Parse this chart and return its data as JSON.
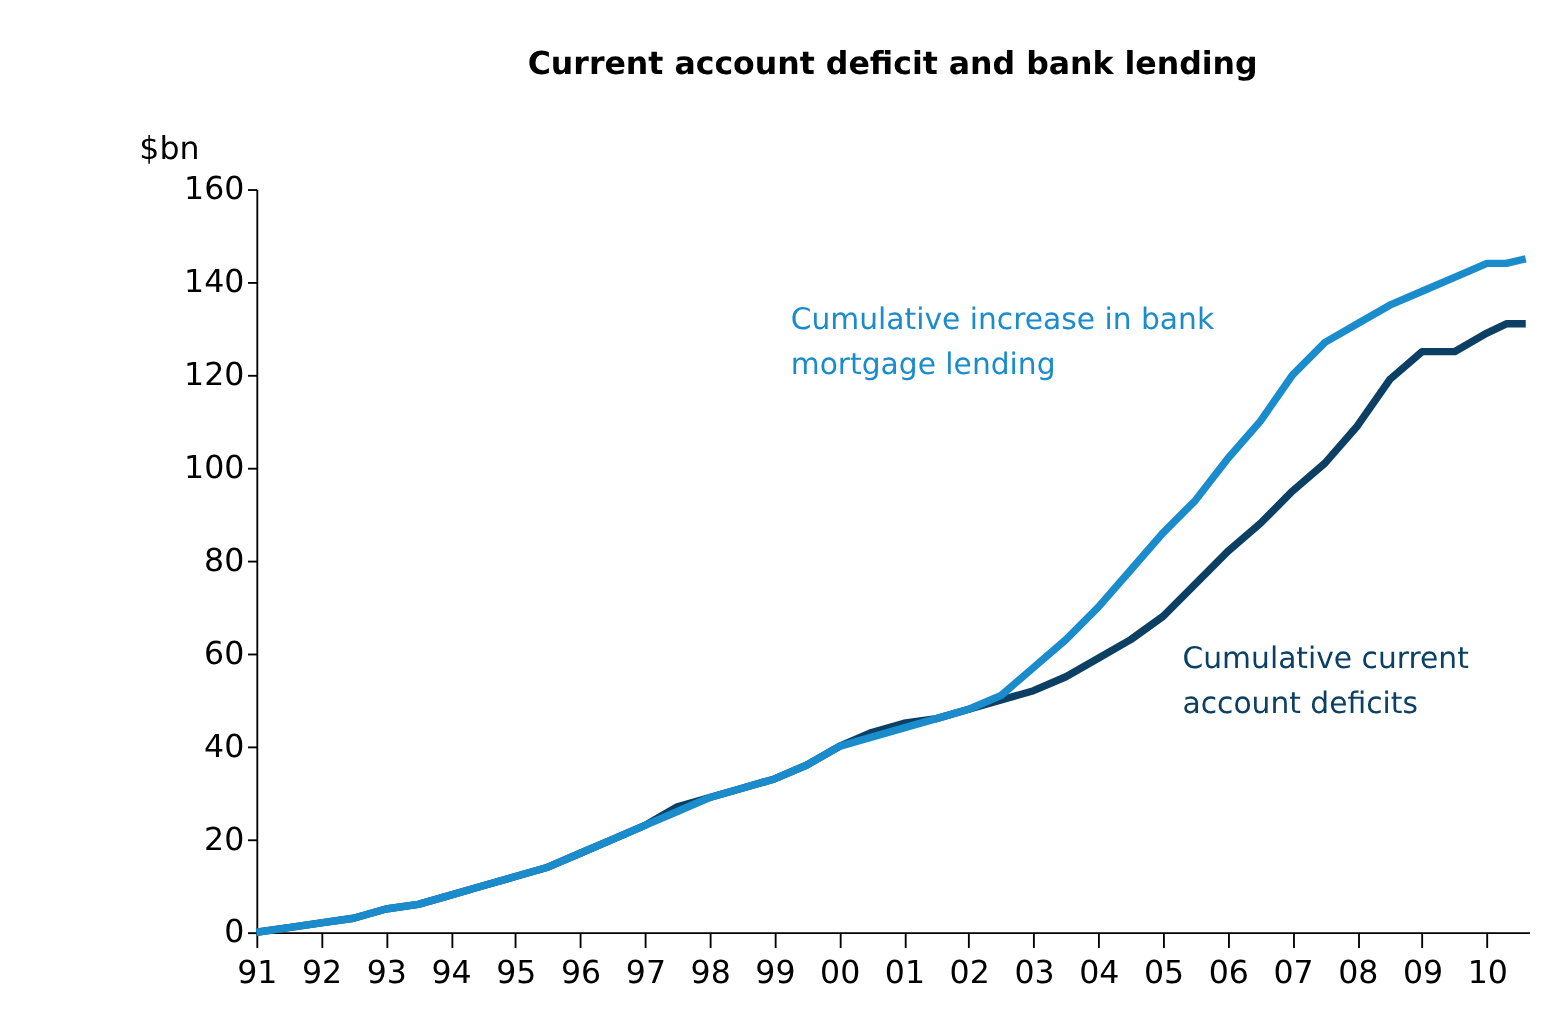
{
  "chart_data": {
    "type": "line",
    "title": "Current account deficit and bank lending",
    "ylabel": "$bn",
    "x": [
      1991,
      1991.5,
      1992,
      1992.5,
      1993,
      1993.5,
      1994,
      1994.5,
      1995,
      1995.5,
      1996,
      1996.5,
      1997,
      1997.5,
      1998,
      1998.5,
      1999,
      1999.5,
      2000,
      2000.5,
      2001,
      2001.5,
      2002,
      2002.5,
      2003,
      2003.5,
      2004,
      2004.5,
      2005,
      2005.5,
      2006,
      2006.5,
      2007,
      2007.5,
      2008,
      2008.5,
      2009,
      2009.5,
      2010,
      2010.3,
      2010.6
    ],
    "series": [
      {
        "name": "Cumulative current account deficits",
        "color": "#0b3f63",
        "values": [
          0,
          1,
          2,
          3,
          5,
          6,
          8,
          10,
          12,
          14,
          17,
          20,
          23,
          27,
          29,
          31,
          33,
          36,
          40,
          43,
          45,
          46,
          48,
          50,
          52,
          55,
          59,
          63,
          68,
          75,
          82,
          88,
          95,
          101,
          109,
          119,
          125,
          125,
          129,
          131,
          131
        ]
      },
      {
        "name": "Cumulative increase in bank mortgage lending",
        "color": "#1a8ccb",
        "values": [
          0,
          1,
          2,
          3,
          5,
          6,
          8,
          10,
          12,
          14,
          17,
          20,
          23,
          26,
          29,
          31,
          33,
          36,
          40,
          42,
          44,
          46,
          48,
          51,
          57,
          63,
          70,
          78,
          86,
          93,
          102,
          110,
          120,
          127,
          131,
          135,
          138,
          141,
          144,
          144,
          145
        ]
      }
    ],
    "xlim": [
      1991,
      2010.65
    ],
    "xticks": [
      {
        "value": 1991,
        "label": "91"
      },
      {
        "value": 1992,
        "label": "92"
      },
      {
        "value": 1993,
        "label": "93"
      },
      {
        "value": 1994,
        "label": "94"
      },
      {
        "value": 1995,
        "label": "95"
      },
      {
        "value": 1996,
        "label": "96"
      },
      {
        "value": 1997,
        "label": "97"
      },
      {
        "value": 1998,
        "label": "98"
      },
      {
        "value": 1999,
        "label": "99"
      },
      {
        "value": 2000,
        "label": "00"
      },
      {
        "value": 2001,
        "label": "01"
      },
      {
        "value": 2002,
        "label": "02"
      },
      {
        "value": 2003,
        "label": "03"
      },
      {
        "value": 2004,
        "label": "04"
      },
      {
        "value": 2005,
        "label": "05"
      },
      {
        "value": 2006,
        "label": "06"
      },
      {
        "value": 2007,
        "label": "07"
      },
      {
        "value": 2008,
        "label": "08"
      },
      {
        "value": 2009,
        "label": "09"
      },
      {
        "value": 2010,
        "label": "10"
      }
    ],
    "ylim": [
      0,
      160
    ],
    "yticks": [
      0,
      20,
      40,
      60,
      80,
      100,
      120,
      140,
      160
    ],
    "grid": false,
    "legend": false,
    "marker": "none",
    "line_style": "solid"
  }
}
